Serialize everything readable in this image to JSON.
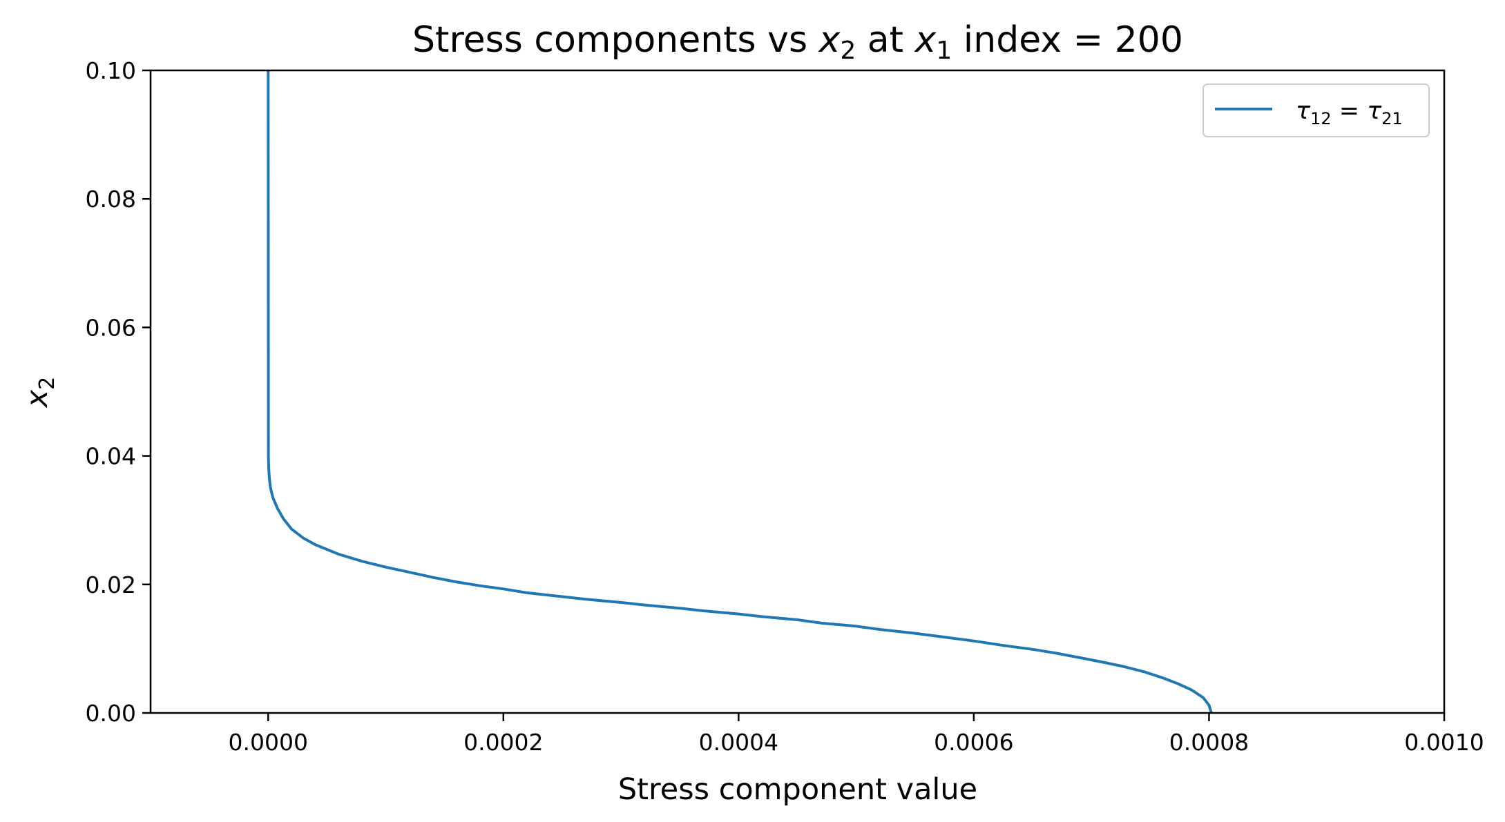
{
  "chart_data": {
    "type": "line",
    "title": {
      "prefix": "Stress components vs ",
      "v1": "x",
      "v1_sub": "2",
      "mid": " at ",
      "v2": "x",
      "v2_sub": "1",
      "suffix": " index = 200"
    },
    "xlabel": "Stress component value",
    "ylabel": {
      "base": "x",
      "sub": "2"
    },
    "xlim": [
      -0.0001,
      0.001
    ],
    "ylim": [
      0.0,
      0.1
    ],
    "xticks": [
      0.0,
      0.0002,
      0.0004,
      0.0006,
      0.0008,
      0.001
    ],
    "xtick_labels": [
      "0.0000",
      "0.0002",
      "0.0004",
      "0.0006",
      "0.0008",
      "0.0010"
    ],
    "yticks": [
      0.0,
      0.02,
      0.04,
      0.06,
      0.08,
      0.1
    ],
    "ytick_labels": [
      "0.00",
      "0.02",
      "0.04",
      "0.06",
      "0.08",
      "0.10"
    ],
    "grid": false,
    "legend_position": "top-right",
    "series": [
      {
        "name": "τ12 = τ21",
        "legend": {
          "a": "τ",
          "a_sub": "12",
          "eq": " = ",
          "b": "τ",
          "b_sub": "21"
        },
        "color": "#1f77b4",
        "x": [
          0.000802,
          0.0008,
          0.000795,
          0.000785,
          0.000773,
          0.00076,
          0.000745,
          0.000728,
          0.00071,
          0.00069,
          0.00067,
          0.00065,
          0.000625,
          0.0006,
          0.000575,
          0.00055,
          0.00052,
          0.0005,
          0.00047,
          0.00045,
          0.00042,
          0.0004,
          0.00037,
          0.00035,
          0.00032,
          0.0003,
          0.00027,
          0.00025,
          0.00022,
          0.0002,
          0.00018,
          0.00016,
          0.00014,
          0.00012,
          0.0001,
          8e-05,
          6e-05,
          4e-05,
          3e-05,
          2e-05,
          1.3e-05,
          8e-06,
          4e-06,
          2e-06,
          1e-06,
          5e-07,
          2e-07,
          0.0
        ],
        "y": [
          0.0,
          0.0012,
          0.0024,
          0.0036,
          0.0046,
          0.0055,
          0.0064,
          0.0072,
          0.0079,
          0.0086,
          0.0093,
          0.0099,
          0.0105,
          0.0112,
          0.0118,
          0.0124,
          0.013,
          0.0135,
          0.014,
          0.0145,
          0.015,
          0.0154,
          0.0159,
          0.0163,
          0.0168,
          0.0172,
          0.0177,
          0.0181,
          0.0187,
          0.0193,
          0.0198,
          0.0204,
          0.0211,
          0.0219,
          0.0227,
          0.0236,
          0.0247,
          0.0262,
          0.0272,
          0.0286,
          0.0302,
          0.0318,
          0.0335,
          0.035,
          0.0365,
          0.038,
          0.04,
          0.1
        ]
      }
    ]
  }
}
